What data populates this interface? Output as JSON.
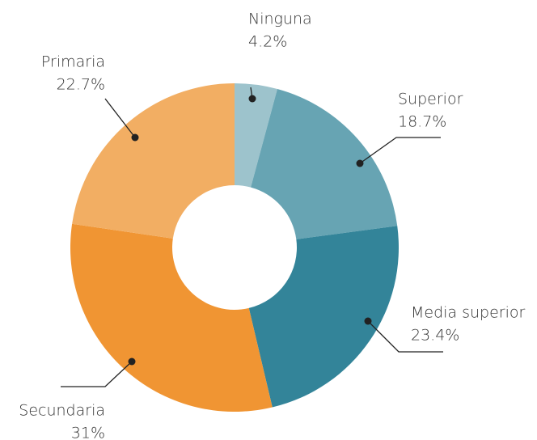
{
  "chart_data": {
    "type": "donut",
    "categories": [
      "Ninguna",
      "Superior",
      "Media superior",
      "Secundaria",
      "Primaria"
    ],
    "values": [
      4.2,
      18.7,
      23.4,
      31,
      22.7
    ],
    "value_labels": [
      "4.2%",
      "18.7%",
      "23.4%",
      "31%",
      "22.7%"
    ],
    "colors": [
      "#9dc3cc",
      "#67a4b3",
      "#338499",
      "#f09533",
      "#f2ae63"
    ]
  }
}
